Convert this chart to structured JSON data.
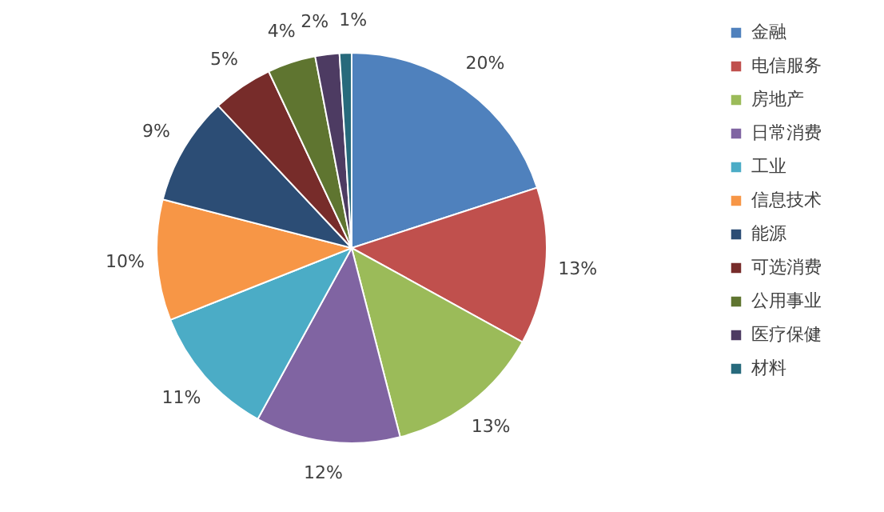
{
  "chart_data": {
    "type": "pie",
    "categories": [
      "金融",
      "电信服务",
      "房地产",
      "日常消费",
      "工业",
      "信息技术",
      "能源",
      "可选消费",
      "公用事业",
      "医疗保健",
      "材料"
    ],
    "values": [
      20,
      13,
      13,
      12,
      11,
      10,
      9,
      5,
      4,
      2,
      1
    ],
    "colors": [
      "#4f81bd",
      "#c0504d",
      "#9bbb59",
      "#8064a2",
      "#4bacc6",
      "#f79646",
      "#2c4d75",
      "#772c2a",
      "#5f7530",
      "#4d3b62",
      "#276a7c"
    ],
    "value_labels": [
      "20%",
      "13%",
      "13%",
      "12%",
      "11%",
      "10%",
      "9%",
      "5%",
      "4%",
      "2%",
      "1%"
    ],
    "legend": "right"
  }
}
